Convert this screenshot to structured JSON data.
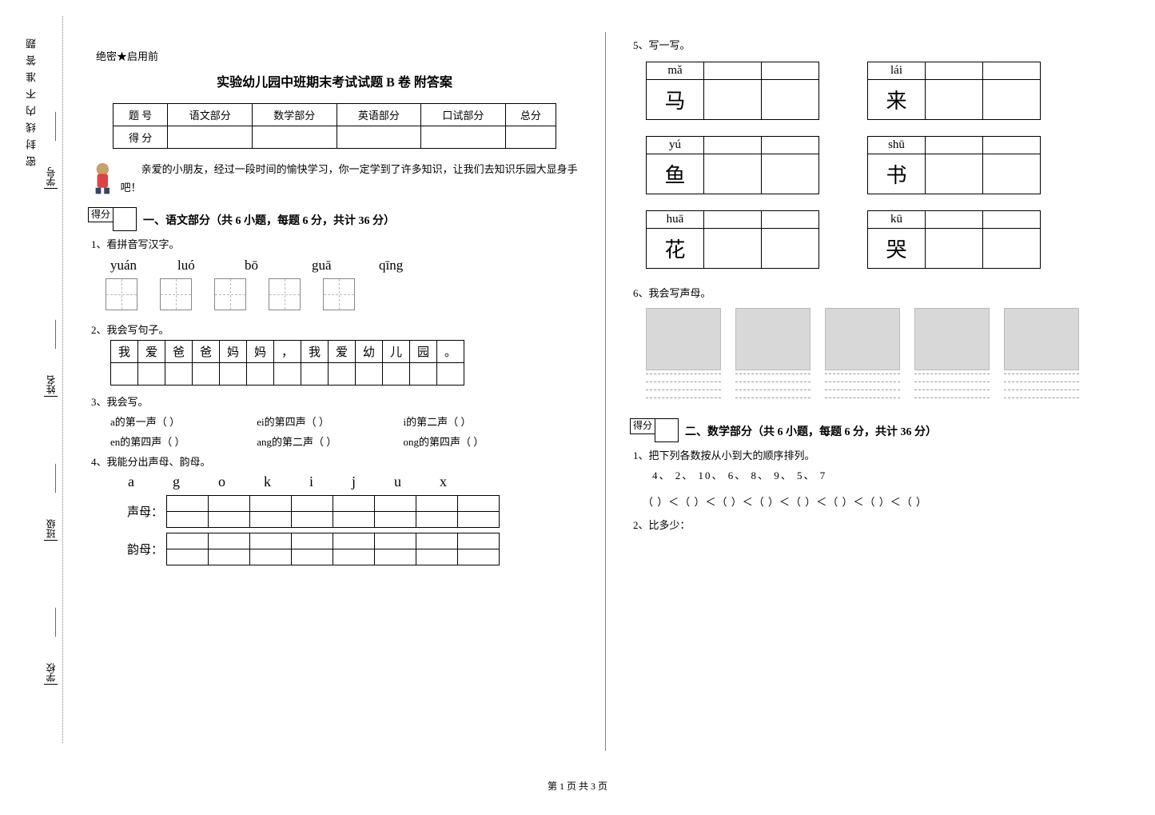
{
  "binding": {
    "chars": "密封线内不准答题",
    "fields": [
      "学校",
      "班级",
      "姓名",
      "学号"
    ]
  },
  "confidential": "绝密★启用前",
  "title": "实验幼儿园中班期末考试试题 B 卷  附答案",
  "score_headers": [
    "题    号",
    "语文部分",
    "数学部分",
    "英语部分",
    "口试部分",
    "总分"
  ],
  "score_row2": "得    分",
  "intro": "亲爱的小朋友，经过一段时间的愉快学习，你一定学到了许多知识，让我们去知识乐园大显身手吧！",
  "score_box": "得分",
  "section1_title": "一、语文部分（共 6 小题，每题 6 分，共计 36 分）",
  "q1": "1、看拼音写汉字。",
  "q1_pinyin": [
    "yuán",
    "luó",
    "bō",
    "guā",
    "qīng"
  ],
  "q2": "2、我会写句子。",
  "q2_chars": [
    "我",
    "爱",
    "爸",
    "爸",
    "妈",
    "妈",
    "，",
    "我",
    "爱",
    "幼",
    "儿",
    "园",
    "。"
  ],
  "q3": "3、我会写。",
  "q3_lines": [
    [
      "a的第一声（        ）",
      "ei的第四声（        ）",
      "i的第二声（        ）"
    ],
    [
      "en的第四声（        ）",
      "ang的第二声（        ）",
      "ong的第四声（        ）"
    ]
  ],
  "q4": "4、我能分出声母、韵母。",
  "q4_letters": [
    "a",
    "g",
    "o",
    "k",
    "i",
    "j",
    "u",
    "x"
  ],
  "q4_shengmu": "声母：",
  "q4_yunmu": "韵母：",
  "q5": "5、写一写。",
  "q5_pairs": [
    [
      {
        "py": "mǎ",
        "hz": "马"
      },
      {
        "py": "lái",
        "hz": "来"
      }
    ],
    [
      {
        "py": "yú",
        "hz": "鱼"
      },
      {
        "py": "shū",
        "hz": "书"
      }
    ],
    [
      {
        "py": "huā",
        "hz": "花"
      },
      {
        "py": "kū",
        "hz": "哭"
      }
    ]
  ],
  "q6": "6、我会写声母。",
  "section2_title": "二、数学部分（共 6 小题，每题 6 分，共计 36 分）",
  "m1": "1、把下列各数按从小到大的顺序排列。",
  "m1_nums": "4、   2、   10、   6、   8、   9、   5、   7",
  "m1_paren": "（        ）＜（        ）＜（        ）＜（        ）＜（        ）＜（        ）＜（        ）＜（        ）",
  "m2": "2、比多少：",
  "footer": "第 1 页 共 3 页"
}
